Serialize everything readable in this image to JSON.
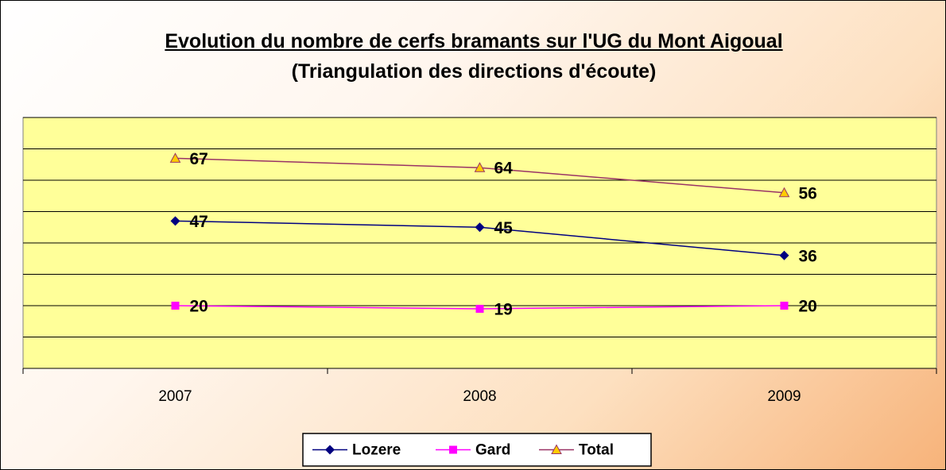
{
  "chart_data": {
    "type": "line",
    "title": "Evolution du nombre de cerfs bramants sur l'UG du Mont Aigoual",
    "subtitle": "(Triangulation des directions d'écoute)",
    "categories": [
      "2007",
      "2008",
      "2009"
    ],
    "series": [
      {
        "name": "Lozere",
        "color": "#000080",
        "marker": "diamond",
        "values": [
          47,
          45,
          36
        ]
      },
      {
        "name": "Gard",
        "color": "#ff00ff",
        "marker": "square",
        "values": [
          20,
          19,
          20
        ]
      },
      {
        "name": "Total",
        "color": "#993366",
        "marker": "triangle",
        "values": [
          67,
          64,
          56
        ]
      }
    ],
    "ylim": [
      0,
      80
    ],
    "yticks": [
      0,
      10,
      20,
      30,
      40,
      50,
      60,
      70,
      80
    ],
    "grid": true,
    "legend": "bottom"
  }
}
